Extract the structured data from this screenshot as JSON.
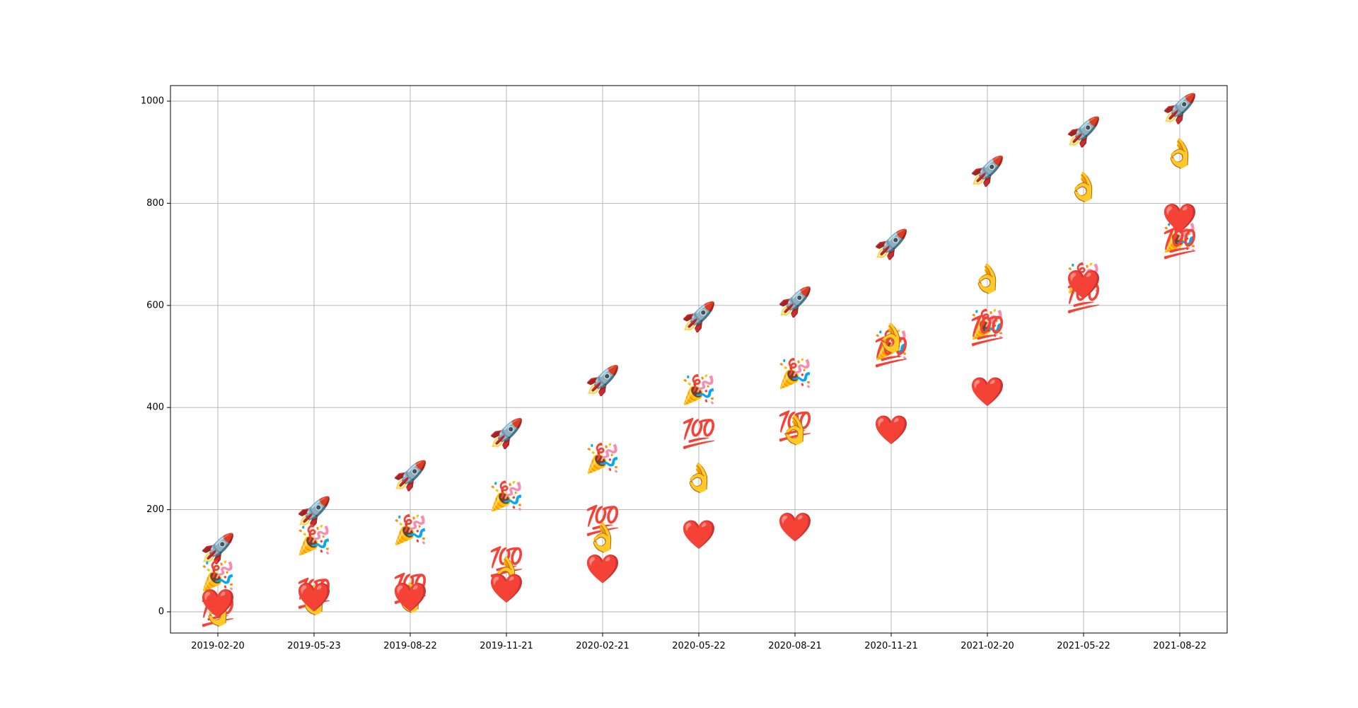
{
  "chart_data": {
    "type": "scatter",
    "title": "",
    "xlabel": "",
    "ylabel": "",
    "grid": true,
    "x": [
      "2019-02-20",
      "2019-05-23",
      "2019-08-22",
      "2019-11-21",
      "2020-02-21",
      "2020-05-22",
      "2020-08-21",
      "2020-11-21",
      "2021-02-20",
      "2021-05-22",
      "2021-08-22"
    ],
    "x_ticks": [
      "2019-02-20",
      "2019-05-23",
      "2019-08-22",
      "2019-11-21",
      "2020-02-21",
      "2020-05-22",
      "2020-08-21",
      "2020-11-21",
      "2021-02-20",
      "2021-05-22",
      "2021-08-22"
    ],
    "ylim": [
      -40,
      1030
    ],
    "y_ticks": [
      0,
      200,
      400,
      600,
      800,
      1000
    ],
    "series": [
      {
        "marker": "rocket",
        "glyph": "🚀",
        "color": "#9aa5b1",
        "values": [
          123,
          195,
          266,
          348,
          452,
          577,
          606,
          719,
          862,
          939,
          985
        ]
      },
      {
        "marker": "party-popper",
        "glyph": "🎉",
        "color": "#f4b400",
        "values": [
          70,
          140,
          160,
          226,
          300,
          434,
          466,
          522,
          562,
          653,
          733
        ]
      },
      {
        "marker": "hundred-points",
        "glyph": "💯",
        "color": "#e53935",
        "values": [
          0,
          35,
          45,
          97,
          178,
          348,
          363,
          508,
          550,
          614,
          720
        ]
      },
      {
        "marker": "ok-hand",
        "glyph": "👌",
        "color": "#f9c23c",
        "values": [
          0,
          22,
          27,
          78,
          145,
          262,
          355,
          535,
          652,
          831,
          897
        ]
      },
      {
        "marker": "red-heart",
        "glyph": "❤️",
        "color": "#dd2e44",
        "values": [
          15,
          28,
          28,
          45,
          83,
          150,
          165,
          355,
          430,
          640,
          770
        ]
      }
    ]
  }
}
